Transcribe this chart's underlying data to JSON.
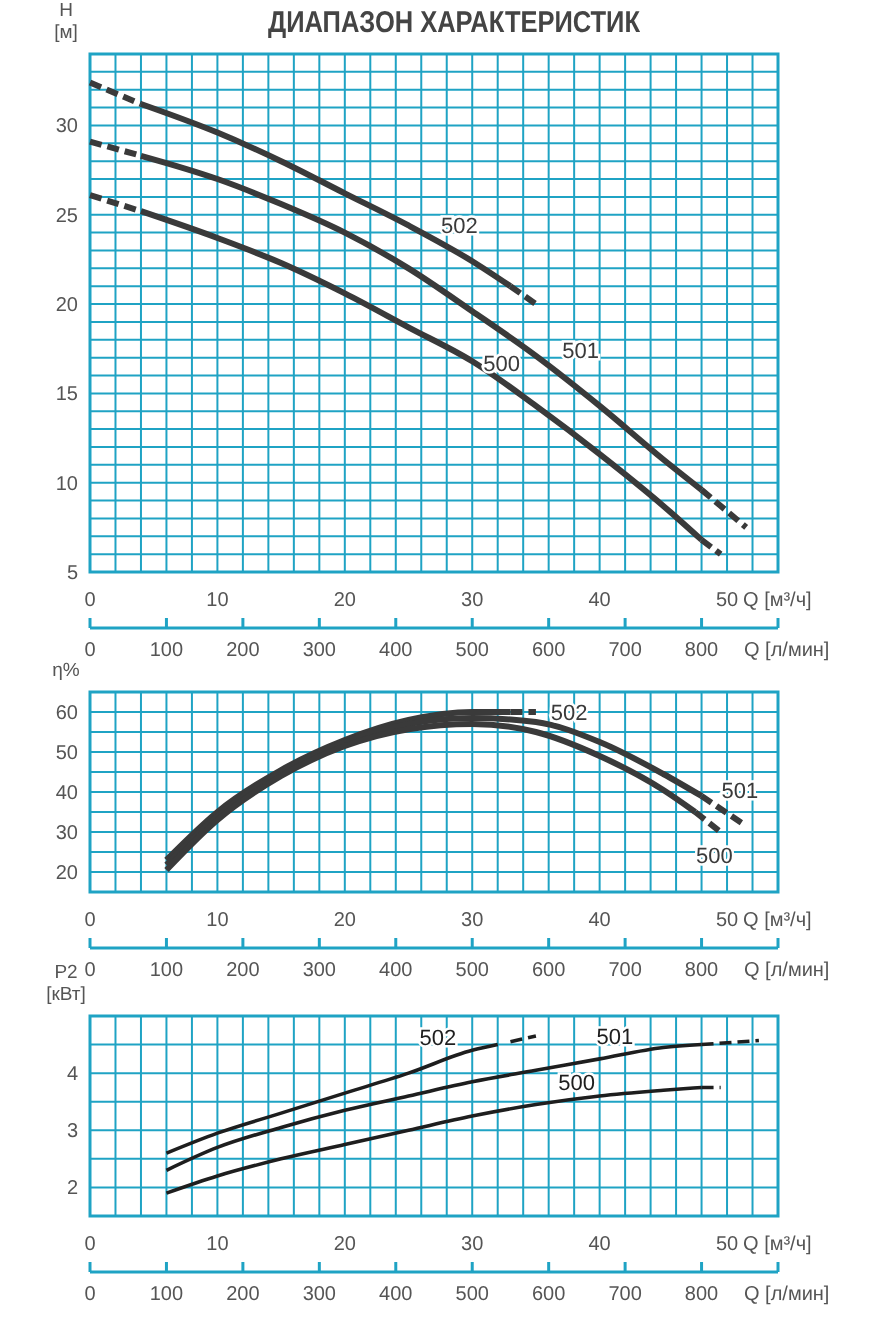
{
  "chart_data": [
    {
      "type": "line",
      "title": "ДИАПАЗОН ХАРАКТЕРИСТИК",
      "ylabel": "H [м]",
      "xlabel": "Q [м³/ч]",
      "x2label": "Q [л/мин]",
      "grid": true,
      "line_style": "solid",
      "xlim": [
        0,
        54
      ],
      "xticks": [
        0,
        {
          "value": 2,
          "label": null
        },
        {
          "value": 4,
          "label": null
        },
        {
          "value": 6,
          "label": null
        },
        {
          "value": 8,
          "label": null
        },
        10,
        {
          "value": 12,
          "label": null
        },
        {
          "value": 14,
          "label": null
        },
        {
          "value": 16,
          "label": null
        },
        {
          "value": 18,
          "label": null
        },
        20,
        {
          "value": 22,
          "label": null
        },
        {
          "value": 24,
          "label": null
        },
        {
          "value": 26,
          "label": null
        },
        {
          "value": 28,
          "label": null
        },
        30,
        {
          "value": 32,
          "label": null
        },
        {
          "value": 34,
          "label": null
        },
        {
          "value": 36,
          "label": null
        },
        {
          "value": 38,
          "label": null
        },
        40,
        {
          "value": 42,
          "label": null
        },
        {
          "value": 44,
          "label": null
        },
        {
          "value": 46,
          "label": null
        },
        {
          "value": 48,
          "label": null
        },
        50,
        {
          "value": 52,
          "label": null
        }
      ],
      "x2lim": [
        0,
        900
      ],
      "x2ticks": [
        0,
        100,
        200,
        300,
        400,
        500,
        600,
        700,
        800
      ],
      "ylim": [
        5,
        34
      ],
      "yticks": [
        5,
        {
          "value": 6,
          "label": null
        },
        {
          "value": 7,
          "label": null
        },
        {
          "value": 8,
          "label": null
        },
        {
          "value": 9,
          "label": null
        },
        10,
        {
          "value": 11,
          "label": null
        },
        {
          "value": 12,
          "label": null
        },
        {
          "value": 13,
          "label": null
        },
        {
          "value": 14,
          "label": null
        },
        15,
        {
          "value": 16,
          "label": null
        },
        {
          "value": 17,
          "label": null
        },
        {
          "value": 18,
          "label": null
        },
        {
          "value": 19,
          "label": null
        },
        20,
        {
          "value": 21,
          "label": null
        },
        {
          "value": 22,
          "label": null
        },
        {
          "value": 23,
          "label": null
        },
        {
          "value": 24,
          "label": null
        },
        25,
        {
          "value": 26,
          "label": null
        },
        {
          "value": 27,
          "label": null
        },
        {
          "value": 28,
          "label": null
        },
        {
          "value": 29,
          "label": null
        },
        30,
        {
          "value": 31,
          "label": null
        },
        {
          "value": 32,
          "label": null
        },
        {
          "value": 33,
          "label": null
        }
      ],
      "series": [
        {
          "name": "502",
          "color": "#3a3a3a",
          "x": [
            4,
            10,
            15,
            20,
            25,
            30,
            33
          ],
          "values": [
            31.2,
            29.6,
            28.0,
            26.2,
            24.4,
            22.4,
            21.0
          ]
        },
        {
          "name": "501",
          "color": "#3a3a3a",
          "x": [
            4,
            10,
            15,
            20,
            25,
            30,
            35,
            40,
            45,
            48
          ],
          "values": [
            28.3,
            27.0,
            25.6,
            24.0,
            22.0,
            19.6,
            17.1,
            14.3,
            11.3,
            9.6
          ]
        },
        {
          "name": "500",
          "color": "#3a3a3a",
          "x": [
            4,
            10,
            15,
            20,
            25,
            30,
            35,
            40,
            45,
            48
          ],
          "values": [
            25.2,
            23.7,
            22.3,
            20.6,
            18.7,
            16.8,
            14.3,
            11.6,
            8.7,
            6.8
          ]
        },
        {
          "color": "#3a3a3a",
          "line_style": "dashed",
          "x": [
            0,
            4,
            20,
            33,
            35
          ],
          "values": [
            32.4,
            31.2,
            null,
            21.0,
            20.0
          ]
        },
        {
          "color": "#3a3a3a",
          "line_style": "dashed",
          "x": [
            0,
            4,
            20,
            48,
            51.5
          ],
          "values": [
            29.1,
            28.3,
            null,
            9.6,
            7.5
          ]
        },
        {
          "color": "#3a3a3a",
          "line_style": "dashed",
          "x": [
            0,
            4,
            20,
            48,
            49.5
          ],
          "values": [
            26.1,
            25.2,
            null,
            6.8,
            6.0
          ]
        }
      ]
    },
    {
      "type": "line",
      "ylabel": "η%",
      "xlabel": "Q [м³/ч]",
      "x2label": "Q [л/мин]",
      "grid": true,
      "line_style": "solid",
      "xlim": [
        0,
        54
      ],
      "xticks": [
        0,
        {
          "value": 2,
          "label": null
        },
        {
          "value": 4,
          "label": null
        },
        {
          "value": 6,
          "label": null
        },
        {
          "value": 8,
          "label": null
        },
        10,
        {
          "value": 12,
          "label": null
        },
        {
          "value": 14,
          "label": null
        },
        {
          "value": 16,
          "label": null
        },
        {
          "value": 18,
          "label": null
        },
        20,
        {
          "value": 22,
          "label": null
        },
        {
          "value": 24,
          "label": null
        },
        {
          "value": 26,
          "label": null
        },
        {
          "value": 28,
          "label": null
        },
        30,
        {
          "value": 32,
          "label": null
        },
        {
          "value": 34,
          "label": null
        },
        {
          "value": 36,
          "label": null
        },
        {
          "value": 38,
          "label": null
        },
        40,
        {
          "value": 42,
          "label": null
        },
        {
          "value": 44,
          "label": null
        },
        {
          "value": 46,
          "label": null
        },
        {
          "value": 48,
          "label": null
        },
        50,
        {
          "value": 52,
          "label": null
        }
      ],
      "x2lim": [
        0,
        900
      ],
      "x2ticks": [
        0,
        100,
        200,
        300,
        400,
        500,
        600,
        700,
        800
      ],
      "ylim": [
        15,
        65
      ],
      "yticks": [
        20,
        {
          "value": 25,
          "label": null
        },
        30,
        {
          "value": 35,
          "label": null
        },
        40,
        {
          "value": 45,
          "label": null
        },
        50,
        {
          "value": 55,
          "label": null
        },
        60
      ],
      "series": [
        {
          "name": "502",
          "color": "#3a3a3a",
          "x": [
            6,
            10,
            15,
            20,
            25,
            30,
            33
          ],
          "values": [
            23,
            35,
            45.5,
            53,
            58,
            60,
            60
          ]
        },
        {
          "name": "501",
          "color": "#3a3a3a",
          "x": [
            6,
            10,
            15,
            20,
            25,
            30,
            35,
            40,
            45,
            48
          ],
          "values": [
            21.8,
            34,
            45,
            52.5,
            57,
            58.5,
            57.5,
            52.5,
            44.5,
            39
          ]
        },
        {
          "name": "500",
          "color": "#3a3a3a",
          "x": [
            6,
            10,
            15,
            20,
            25,
            30,
            35,
            40,
            45,
            47.5
          ],
          "values": [
            20.5,
            33,
            44,
            51.5,
            55.7,
            57,
            55,
            49,
            40.5,
            35
          ]
        },
        {
          "color": "#3a3a3a",
          "line_style": "dashed",
          "x": [
            33,
            35
          ],
          "values": [
            60,
            60
          ]
        },
        {
          "color": "#3a3a3a",
          "line_style": "dashed",
          "x": [
            48,
            51.5
          ],
          "values": [
            39,
            31.5
          ]
        },
        {
          "color": "#3a3a3a",
          "line_style": "dashed",
          "x": [
            47.5,
            49.5
          ],
          "values": [
            35,
            30
          ]
        }
      ]
    },
    {
      "type": "line",
      "ylabel": "P2 [кВт]",
      "xlabel": "Q [м³/ч]",
      "x2label": "Q [л/мин]",
      "grid": true,
      "line_style": "solid",
      "xlim": [
        0,
        54
      ],
      "xticks": [
        0,
        {
          "value": 2,
          "label": null
        },
        {
          "value": 4,
          "label": null
        },
        {
          "value": 6,
          "label": null
        },
        {
          "value": 8,
          "label": null
        },
        10,
        {
          "value": 12,
          "label": null
        },
        {
          "value": 14,
          "label": null
        },
        {
          "value": 16,
          "label": null
        },
        {
          "value": 18,
          "label": null
        },
        20,
        {
          "value": 22,
          "label": null
        },
        {
          "value": 24,
          "label": null
        },
        {
          "value": 26,
          "label": null
        },
        {
          "value": 28,
          "label": null
        },
        30,
        {
          "value": 32,
          "label": null
        },
        {
          "value": 34,
          "label": null
        },
        {
          "value": 36,
          "label": null
        },
        {
          "value": 38,
          "label": null
        },
        40,
        {
          "value": 42,
          "label": null
        },
        {
          "value": 44,
          "label": null
        },
        {
          "value": 46,
          "label": null
        },
        {
          "value": 48,
          "label": null
        },
        50,
        {
          "value": 52,
          "label": null
        }
      ],
      "x2lim": [
        0,
        900
      ],
      "x2ticks": [
        0,
        100,
        200,
        300,
        400,
        500,
        600,
        700,
        800
      ],
      "ylim": [
        1.5,
        5
      ],
      "yticks": [
        2,
        {
          "value": 2.5,
          "label": null
        },
        3,
        {
          "value": 3.5,
          "label": null
        },
        4,
        {
          "value": 4.5,
          "label": null
        }
      ],
      "series": [
        {
          "name": "502",
          "color": "#1e1e1e",
          "x": [
            6,
            10,
            15,
            20,
            25,
            30,
            32
          ],
          "values": [
            2.6,
            2.95,
            3.3,
            3.65,
            4.0,
            4.4,
            4.5
          ]
        },
        {
          "name": "501",
          "color": "#1e1e1e",
          "x": [
            6,
            10,
            15,
            20,
            25,
            30,
            35,
            40,
            45,
            48
          ],
          "values": [
            2.3,
            2.7,
            3.05,
            3.35,
            3.6,
            3.85,
            4.05,
            4.25,
            4.45,
            4.5
          ]
        },
        {
          "name": "500",
          "color": "#1e1e1e",
          "x": [
            6,
            10,
            15,
            20,
            25,
            30,
            35,
            40,
            45,
            48
          ],
          "values": [
            1.9,
            2.2,
            2.5,
            2.75,
            3.0,
            3.25,
            3.45,
            3.6,
            3.7,
            3.75
          ]
        },
        {
          "color": "#1e1e1e",
          "line_style": "dashed",
          "x": [
            33,
            35
          ],
          "values": [
            4.55,
            4.65
          ]
        },
        {
          "color": "#1e1e1e",
          "line_style": "dashed",
          "x": [
            48,
            52.5
          ],
          "values": [
            4.5,
            4.57
          ]
        },
        {
          "color": "#1e1e1e",
          "line_style": "dashed",
          "x": [
            48,
            49.5
          ],
          "values": [
            3.75,
            3.75
          ]
        }
      ]
    }
  ]
}
